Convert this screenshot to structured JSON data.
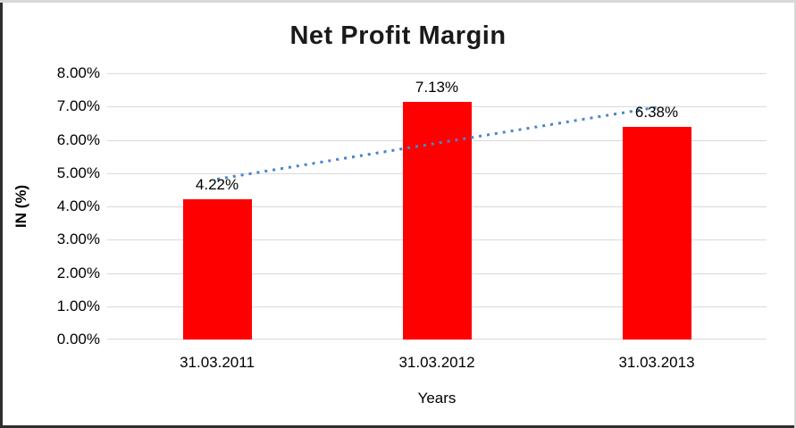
{
  "chart_data": {
    "type": "bar",
    "title": "Net Profit Margin",
    "xlabel": "Years",
    "ylabel": "IN (%)",
    "categories": [
      "31.03.2011",
      "31.03.2012",
      "31.03.2013"
    ],
    "values": [
      4.22,
      7.13,
      6.38
    ],
    "data_labels": [
      "4.22%",
      "7.13%",
      "6.38%"
    ],
    "ylim": [
      0,
      8
    ],
    "ytick_step": 1,
    "ytick_labels": [
      "0.00%",
      "1.00%",
      "2.00%",
      "3.00%",
      "4.00%",
      "5.00%",
      "6.00%",
      "7.00%",
      "8.00%"
    ],
    "grid": true,
    "legend": false,
    "bar_color": "#ff0000",
    "gridline_color": "#d9d9d9",
    "trendline": {
      "style": "dotted",
      "color": "#4a86c8",
      "start": {
        "category_index": 0,
        "value": 4.83
      },
      "end": {
        "category_index": 2,
        "value": 6.99
      }
    }
  }
}
